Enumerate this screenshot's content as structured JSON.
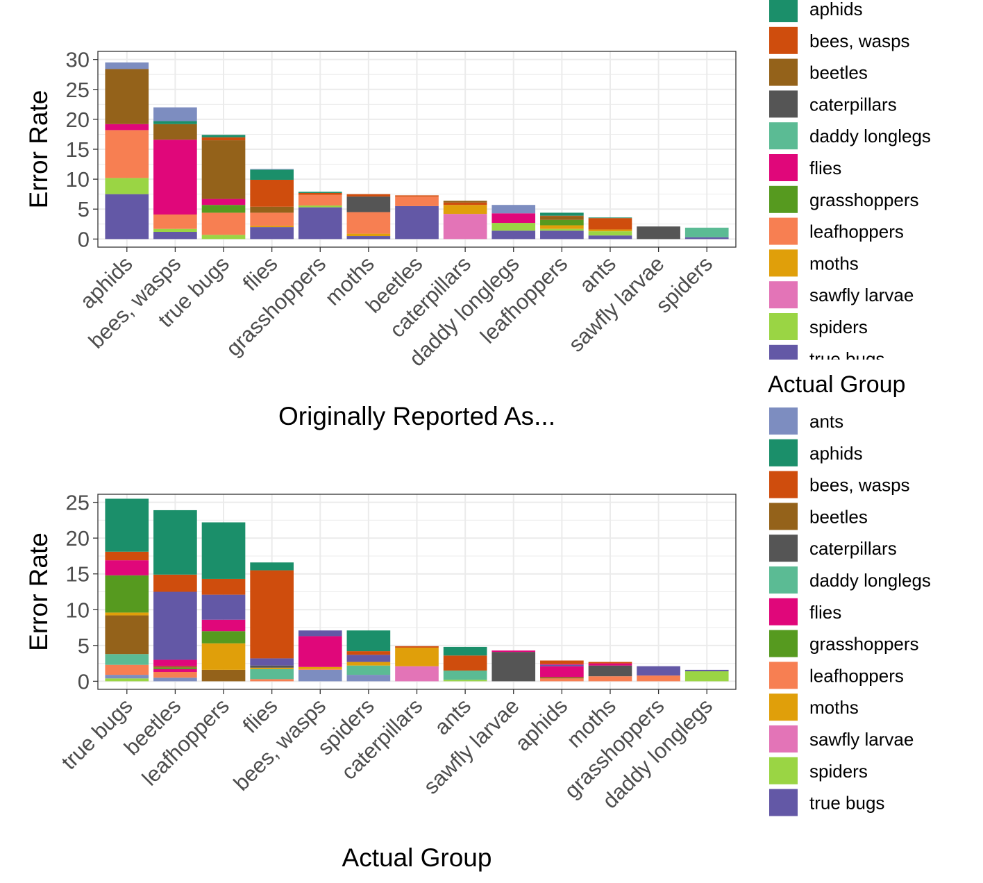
{
  "colors": {
    "ants": "#7d8dc0",
    "aphids": "#1b8f6a",
    "bees, wasps": "#cf4d0d",
    "beetles": "#94621a",
    "caterpillars": "#555555",
    "daddy longlegs": "#5bbb94",
    "flies": "#e0077a",
    "grasshoppers": "#569a1f",
    "leafhoppers": "#f77f52",
    "moths": "#e09f0a",
    "sawfly larvae": "#e374b7",
    "spiders": "#9ad544",
    "true bugs": "#6358a6"
  },
  "legend_top": {
    "items": [
      "aphids",
      "bees, wasps",
      "beetles",
      "caterpillars",
      "daddy longlegs",
      "flies",
      "grasshoppers",
      "leafhoppers",
      "moths",
      "sawfly larvae",
      "spiders",
      "true bugs"
    ]
  },
  "legend_bottom": {
    "title": "Actual Group",
    "items": [
      "ants",
      "aphids",
      "bees, wasps",
      "beetles",
      "caterpillars",
      "daddy longlegs",
      "flies",
      "grasshoppers",
      "leafhoppers",
      "moths",
      "sawfly larvae",
      "spiders",
      "true bugs"
    ]
  },
  "chart_data": [
    {
      "type": "bar",
      "stacked": true,
      "xlabel": "Originally Reported As...",
      "ylabel": "Error Rate",
      "ylim": [
        0,
        30
      ],
      "yticks": [
        0,
        5,
        10,
        15,
        20,
        25,
        30
      ],
      "categories": [
        "aphids",
        "bees, wasps",
        "true bugs",
        "flies",
        "grasshoppers",
        "moths",
        "beetles",
        "caterpillars",
        "daddy longlegs",
        "leafhoppers",
        "ants",
        "sawfly larvae",
        "spiders"
      ],
      "stacks": [
        [
          [
            "true bugs",
            7.5
          ],
          [
            "spiders",
            2.7
          ],
          [
            "leafhoppers",
            8.0
          ],
          [
            "flies",
            1.0
          ],
          [
            "beetles",
            9.2
          ],
          [
            "ants",
            1.1
          ]
        ],
        [
          [
            "true bugs",
            1.2
          ],
          [
            "spiders",
            0.5
          ],
          [
            "leafhoppers",
            2.4
          ],
          [
            "flies",
            12.5
          ],
          [
            "beetles",
            2.6
          ],
          [
            "aphids",
            0.5
          ],
          [
            "ants",
            2.3
          ]
        ],
        [
          [
            "spiders",
            0.7
          ],
          [
            "leafhoppers",
            3.7
          ],
          [
            "grasshoppers",
            1.3
          ],
          [
            "flies",
            1.0
          ],
          [
            "beetles",
            9.8
          ],
          [
            "bees, wasps",
            0.5
          ],
          [
            "aphids",
            0.4
          ]
        ],
        [
          [
            "true bugs",
            2.0
          ],
          [
            "moths",
            0.2
          ],
          [
            "leafhoppers",
            2.2
          ],
          [
            "beetles",
            1.0
          ],
          [
            "bees, wasps",
            4.5
          ],
          [
            "aphids",
            1.7
          ],
          [
            "ants",
            0.1
          ]
        ],
        [
          [
            "true bugs",
            5.3
          ],
          [
            "spiders",
            0.3
          ],
          [
            "leafhoppers",
            1.8
          ],
          [
            "bees, wasps",
            0.3
          ],
          [
            "aphids",
            0.2
          ]
        ],
        [
          [
            "true bugs",
            0.5
          ],
          [
            "moths",
            0.4
          ],
          [
            "leafhoppers",
            3.6
          ],
          [
            "caterpillars",
            2.6
          ],
          [
            "bees, wasps",
            0.4
          ]
        ],
        [
          [
            "true bugs",
            5.5
          ],
          [
            "leafhoppers",
            1.6
          ],
          [
            "bees, wasps",
            0.2
          ]
        ],
        [
          [
            "sawfly larvae",
            4.2
          ],
          [
            "moths",
            1.5
          ],
          [
            "bees, wasps",
            0.4
          ],
          [
            "beetles",
            0.3
          ]
        ],
        [
          [
            "true bugs",
            1.4
          ],
          [
            "spiders",
            1.3
          ],
          [
            "flies",
            1.6
          ],
          [
            "ants",
            1.4
          ]
        ],
        [
          [
            "true bugs",
            1.4
          ],
          [
            "spiders",
            0.3
          ],
          [
            "moths",
            0.6
          ],
          [
            "grasshoppers",
            0.9
          ],
          [
            "beetles",
            0.6
          ],
          [
            "bees, wasps",
            0.1
          ],
          [
            "aphids",
            0.5
          ]
        ],
        [
          [
            "true bugs",
            0.6
          ],
          [
            "spiders",
            0.7
          ],
          [
            "moths",
            0.3
          ],
          [
            "bees, wasps",
            1.9
          ],
          [
            "aphids",
            0.1
          ]
        ],
        [
          [
            "caterpillars",
            2.1
          ]
        ],
        [
          [
            "true bugs",
            0.3
          ],
          [
            "daddy longlegs",
            1.6
          ]
        ]
      ]
    },
    {
      "type": "bar",
      "stacked": true,
      "xlabel": "Actual Group",
      "ylabel": "Error Rate",
      "ylim": [
        0,
        25
      ],
      "yticks": [
        0,
        5,
        10,
        15,
        20,
        25
      ],
      "categories": [
        "true bugs",
        "beetles",
        "leafhoppers",
        "flies",
        "bees, wasps",
        "spiders",
        "caterpillars",
        "ants",
        "sawfly larvae",
        "aphids",
        "moths",
        "grasshoppers",
        "daddy longlegs"
      ],
      "stacks": [
        [
          [
            "spiders",
            0.4
          ],
          [
            "ants",
            0.5
          ],
          [
            "leafhoppers",
            1.4
          ],
          [
            "daddy longlegs",
            1.5
          ],
          [
            "beetles",
            5.4
          ],
          [
            "moths",
            0.4
          ],
          [
            "grasshoppers",
            5.2
          ],
          [
            "flies",
            2.1
          ],
          [
            "bees, wasps",
            1.2
          ],
          [
            "aphids",
            7.4
          ]
        ],
        [
          [
            "ants",
            0.5
          ],
          [
            "leafhoppers",
            0.8
          ],
          [
            "flies",
            0.4
          ],
          [
            "grasshoppers",
            0.2
          ],
          [
            "beetles",
            0.2
          ],
          [
            "flies",
            0.9
          ],
          [
            "true bugs",
            9.5
          ],
          [
            "bees, wasps",
            2.4
          ],
          [
            "aphids",
            9.0
          ]
        ],
        [
          [
            "beetles",
            1.6
          ],
          [
            "moths",
            3.7
          ],
          [
            "grasshoppers",
            1.7
          ],
          [
            "flies",
            1.6
          ],
          [
            "true bugs",
            3.5
          ],
          [
            "bees, wasps",
            2.2
          ],
          [
            "aphids",
            7.9
          ]
        ],
        [
          [
            "leafhoppers",
            0.3
          ],
          [
            "daddy longlegs",
            1.4
          ],
          [
            "moths",
            0.2
          ],
          [
            "caterpillars",
            0.3
          ],
          [
            "true bugs",
            1.0
          ],
          [
            "bees, wasps",
            12.3
          ],
          [
            "aphids",
            1.1
          ]
        ],
        [
          [
            "ants",
            1.6
          ],
          [
            "leafhoppers",
            0.1
          ],
          [
            "moths",
            0.3
          ],
          [
            "flies",
            4.3
          ],
          [
            "true bugs",
            0.8
          ]
        ],
        [
          [
            "ants",
            0.9
          ],
          [
            "daddy longlegs",
            1.3
          ],
          [
            "moths",
            0.5
          ],
          [
            "true bugs",
            1.0
          ],
          [
            "bees, wasps",
            0.5
          ],
          [
            "aphids",
            2.9
          ]
        ],
        [
          [
            "sawfly larvae",
            2.1
          ],
          [
            "moths",
            2.6
          ],
          [
            "bees, wasps",
            0.2
          ]
        ],
        [
          [
            "spiders",
            0.2
          ],
          [
            "daddy longlegs",
            1.3
          ],
          [
            "bees, wasps",
            2.1
          ],
          [
            "aphids",
            1.2
          ]
        ],
        [
          [
            "caterpillars",
            4.1
          ],
          [
            "flies",
            0.2
          ]
        ],
        [
          [
            "leafhoppers",
            0.4
          ],
          [
            "beetles",
            0.2
          ],
          [
            "flies",
            1.5
          ],
          [
            "true bugs",
            0.2
          ],
          [
            "flies",
            0.1
          ],
          [
            "bees, wasps",
            0.5
          ]
        ],
        [
          [
            "leafhoppers",
            0.7
          ],
          [
            "caterpillars",
            1.5
          ],
          [
            "flies",
            0.3
          ],
          [
            "bees, wasps",
            0.2
          ]
        ],
        [
          [
            "leafhoppers",
            0.8
          ],
          [
            "true bugs",
            1.3
          ]
        ],
        [
          [
            "spiders",
            1.4
          ],
          [
            "true bugs",
            0.2
          ]
        ]
      ]
    }
  ]
}
